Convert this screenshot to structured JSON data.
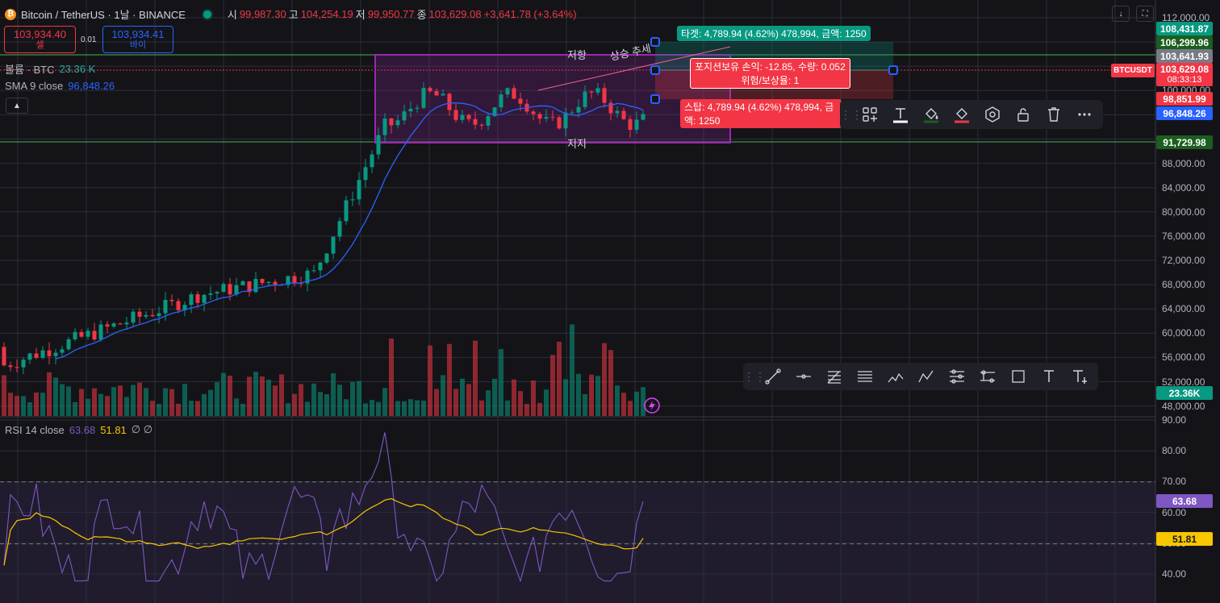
{
  "header": {
    "symbol_title": "Bitcoin / TetherUS · 1날 · BINANCE",
    "ohlc": [
      {
        "key": "시",
        "value": "99,987.30"
      },
      {
        "key": "고",
        "value": "104,254.19"
      },
      {
        "key": "저",
        "value": "99,950.77"
      },
      {
        "key": "종",
        "value": "103,629.08"
      }
    ],
    "change": "+3,641.78 (+3.64%)"
  },
  "trade": {
    "sell_price": "103,934.40",
    "sell_label": "셀",
    "spread": "0.01",
    "buy_price": "103,934.41",
    "buy_label": "바이"
  },
  "legends": {
    "volume_label": "볼륨 · BTC",
    "volume_value": "23.36 K",
    "sma_label": "SMA 9 close",
    "sma_value": "96,848.26",
    "rsi_label": "RSI 14 close",
    "rsi_value": "63.68",
    "rsi_ma_value": "51.81",
    "rsi_extra": "∅ ∅"
  },
  "price_axis": {
    "ticks": [
      "112,000.00",
      "108,000.00",
      "104,000.00",
      "100,000.00",
      "96,000.00",
      "92,000.00",
      "88,000.00",
      "84,000.00",
      "80,000.00",
      "76,000.00",
      "72,000.00",
      "68,000.00",
      "64,000.00",
      "60,000.00",
      "56,000.00",
      "52,000.00",
      "48,000.00"
    ],
    "rsi_ticks": [
      "90.00",
      "80.00",
      "70.00",
      "60.00",
      "50.00",
      "40.00"
    ],
    "tags": {
      "target": "108,431.87",
      "resistance": "106,299.96",
      "last_grey": "103,641.93",
      "current": "103,629.08",
      "countdown": "08:33:13",
      "stop": "98,851.99",
      "sma": "96,848.26",
      "support": "91,729.98",
      "volume": "23.36K",
      "rsi": "63.68",
      "rsi_ma": "51.81"
    },
    "symbol_tag": "BTCUSDT"
  },
  "drawings": {
    "resistance_label": "저항",
    "support_label": "지지",
    "trend_label": "상승 추세",
    "target_label": "타겟: 4,789.94 (4.62%) 478,994, 금액: 1250",
    "position_line1": "포지션보유 손익: -12.85, 수량: 0.052",
    "position_line2": "위험/보상율: 1",
    "stop_label": "스탑: 4,789.94 (4.62%) 478,994, 금액: 1250"
  },
  "toolbars": {
    "object_tools": [
      "object-tree-icon",
      "text-icon",
      "fill-color-icon",
      "border-color-icon",
      "settings-icon",
      "lock-icon",
      "delete-icon",
      "more-icon"
    ],
    "drawing_tools": [
      "trend-line-icon",
      "horizontal-ray-icon",
      "fib-retracement-icon",
      "parallel-channel-icon",
      "elliott-wave-icon",
      "abcd-pattern-icon",
      "fib-extension-icon",
      "pitchfork-icon",
      "rectangle-icon",
      "text-icon",
      "anchored-text-icon"
    ]
  },
  "colors": {
    "up": "#089981",
    "down": "#f23645",
    "sma": "#2962ff",
    "rsi": "#7e57c2",
    "rsi_ma": "#f7c600",
    "support_line": "#4caf50",
    "box": "#9c27b0"
  },
  "chart_data": {
    "type": "candlestick",
    "price_range": [
      46000,
      114000
    ],
    "rsi_range": [
      35,
      92
    ],
    "rsi_levels": [
      70,
      50
    ],
    "note_grid": true
  }
}
